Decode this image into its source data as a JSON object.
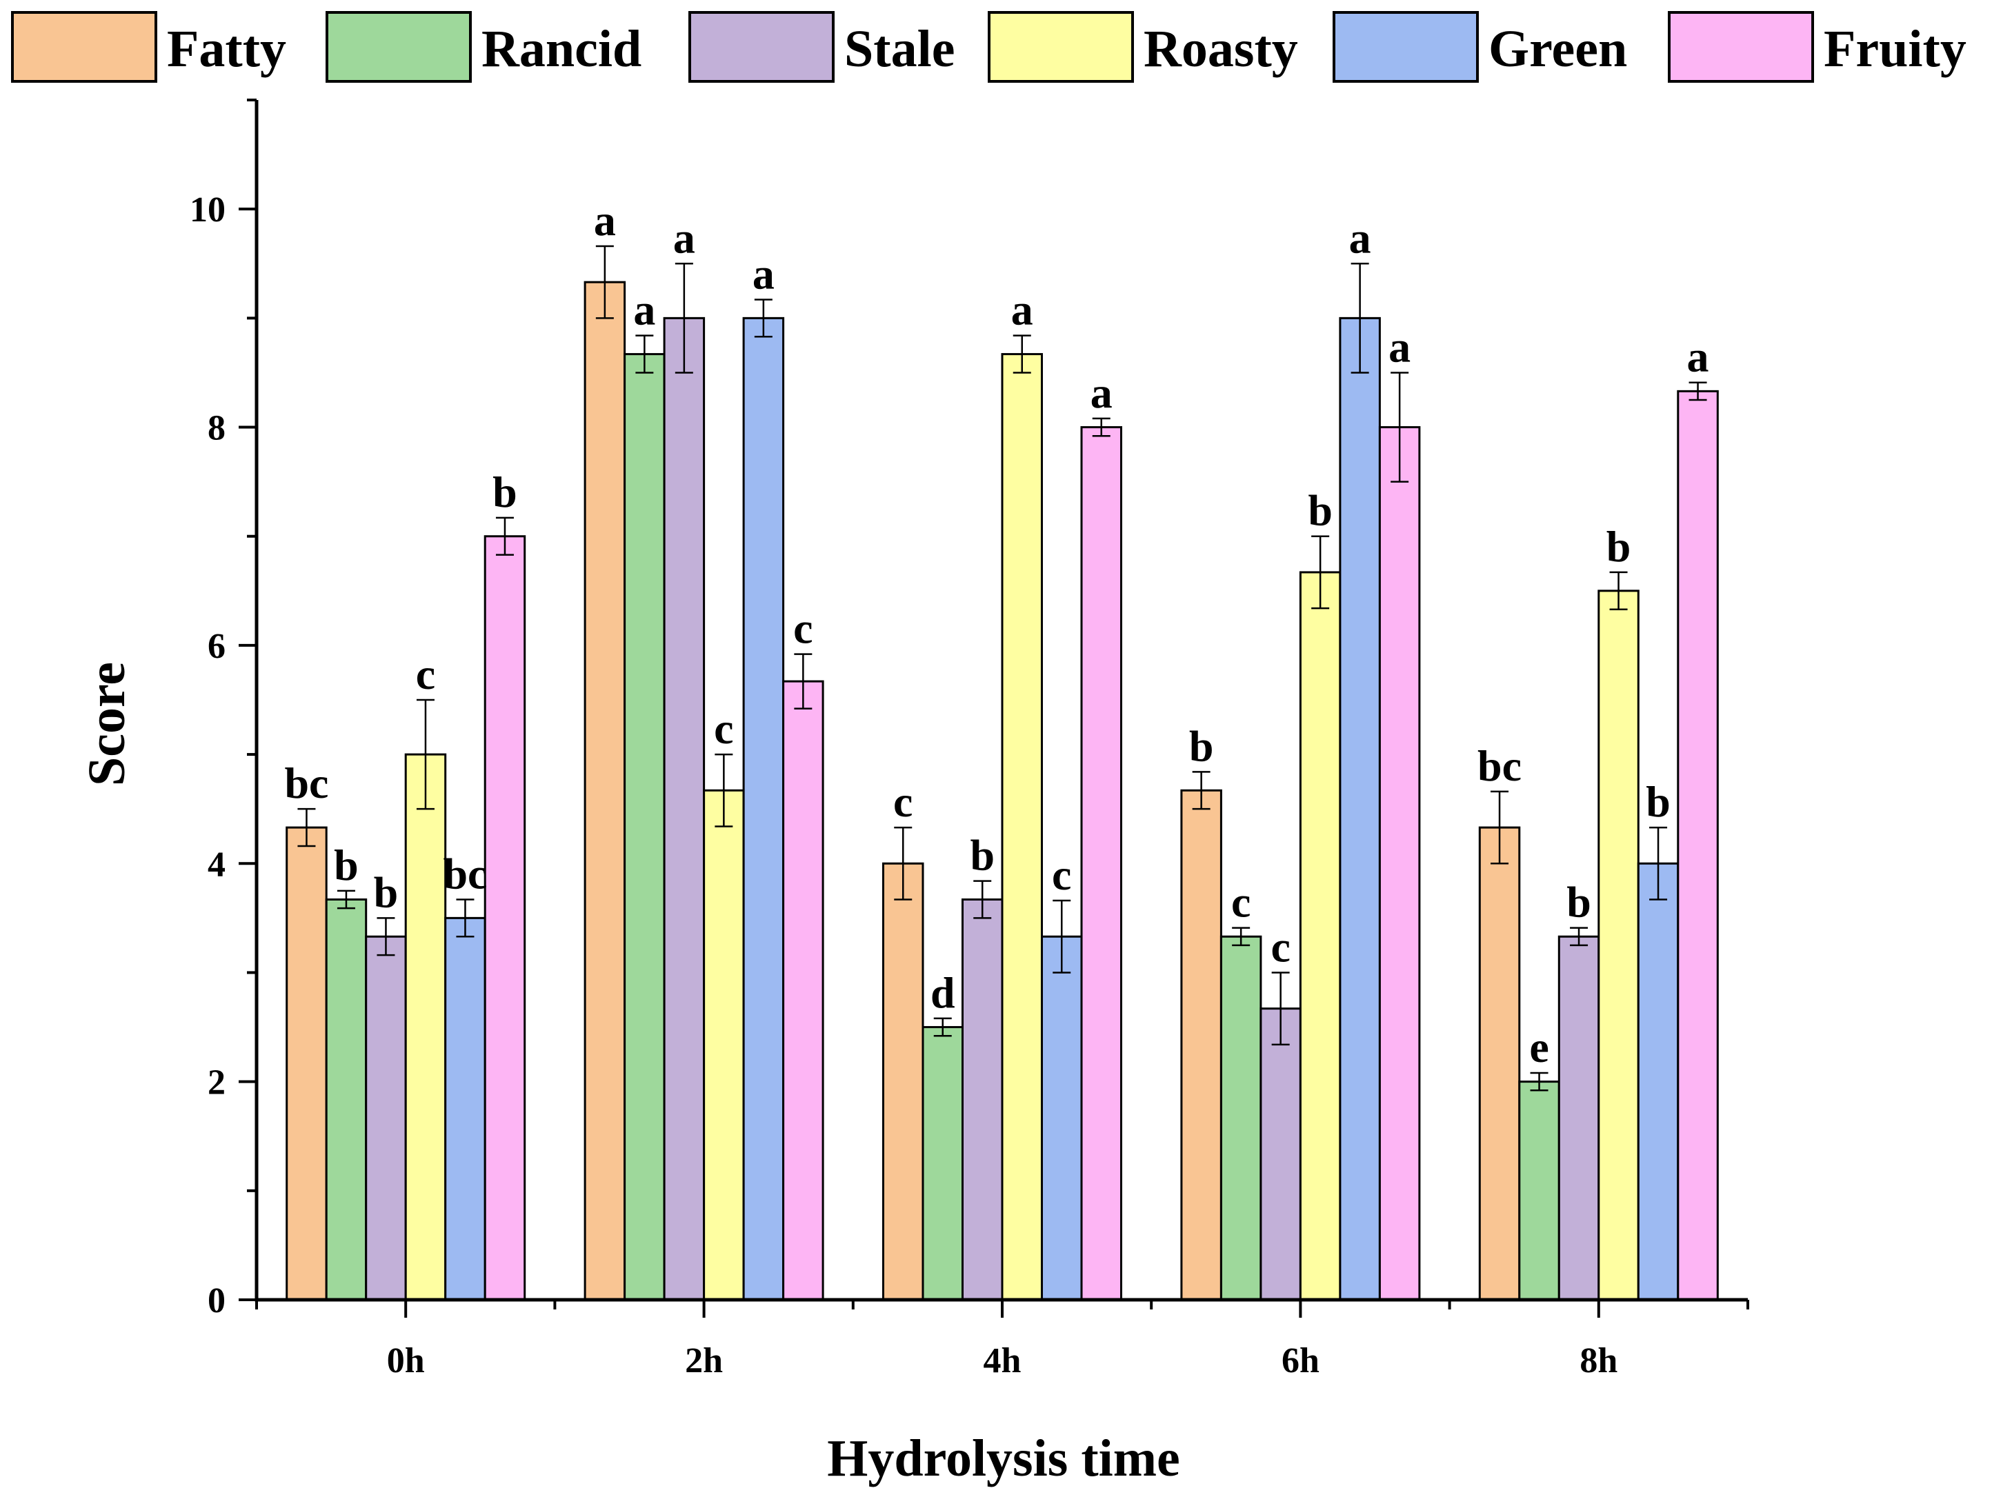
{
  "chart_data": {
    "type": "bar",
    "title": "",
    "xlabel": "Hydrolysis time",
    "ylabel": "Score",
    "ylim": [
      0,
      11
    ],
    "yticks": [
      0,
      2,
      4,
      6,
      8,
      10
    ],
    "ytick_labels": [
      "0",
      "2",
      "4",
      "6",
      "8",
      "10"
    ],
    "categories": [
      "0h",
      "2h",
      "4h",
      "6h",
      "8h"
    ],
    "legend_position": "top",
    "series": [
      {
        "name": "Fatty",
        "color": "#F9C593",
        "values": [
          4.33,
          9.33,
          4.0,
          4.67,
          4.33
        ],
        "errors": [
          0.17,
          0.33,
          0.33,
          0.17,
          0.33
        ],
        "letters": [
          "bc",
          "a",
          "c",
          "b",
          "bc"
        ]
      },
      {
        "name": "Rancid",
        "color": "#9ED89B",
        "values": [
          3.67,
          8.67,
          2.5,
          3.33,
          2.0
        ],
        "errors": [
          0.08,
          0.17,
          0.08,
          0.08,
          0.08
        ],
        "letters": [
          "b",
          "a",
          "d",
          "c",
          "e"
        ]
      },
      {
        "name": "Stale",
        "color": "#C2B0D8",
        "values": [
          3.33,
          9.0,
          3.67,
          2.67,
          3.33
        ],
        "errors": [
          0.17,
          0.5,
          0.17,
          0.33,
          0.08
        ],
        "letters": [
          "b",
          "a",
          "b",
          "c",
          "b"
        ]
      },
      {
        "name": "Roasty",
        "color": "#FEFEA1",
        "values": [
          5.0,
          4.67,
          8.67,
          6.67,
          6.5
        ],
        "errors": [
          0.5,
          0.33,
          0.17,
          0.33,
          0.17
        ],
        "letters": [
          "c",
          "c",
          "a",
          "b",
          "b"
        ]
      },
      {
        "name": "Green",
        "color": "#9DBAF2",
        "values": [
          3.5,
          9.0,
          3.33,
          9.0,
          4.0
        ],
        "errors": [
          0.17,
          0.17,
          0.33,
          0.5,
          0.33
        ],
        "letters": [
          "bc",
          "a",
          "c",
          "a",
          "b"
        ]
      },
      {
        "name": "Fruity",
        "color": "#FDB5F4",
        "values": [
          7.0,
          5.67,
          8.0,
          8.0,
          8.33
        ],
        "errors": [
          0.17,
          0.25,
          0.08,
          0.5,
          0.08
        ],
        "letters": [
          "b",
          "c",
          "a",
          "a",
          "a"
        ]
      }
    ]
  }
}
